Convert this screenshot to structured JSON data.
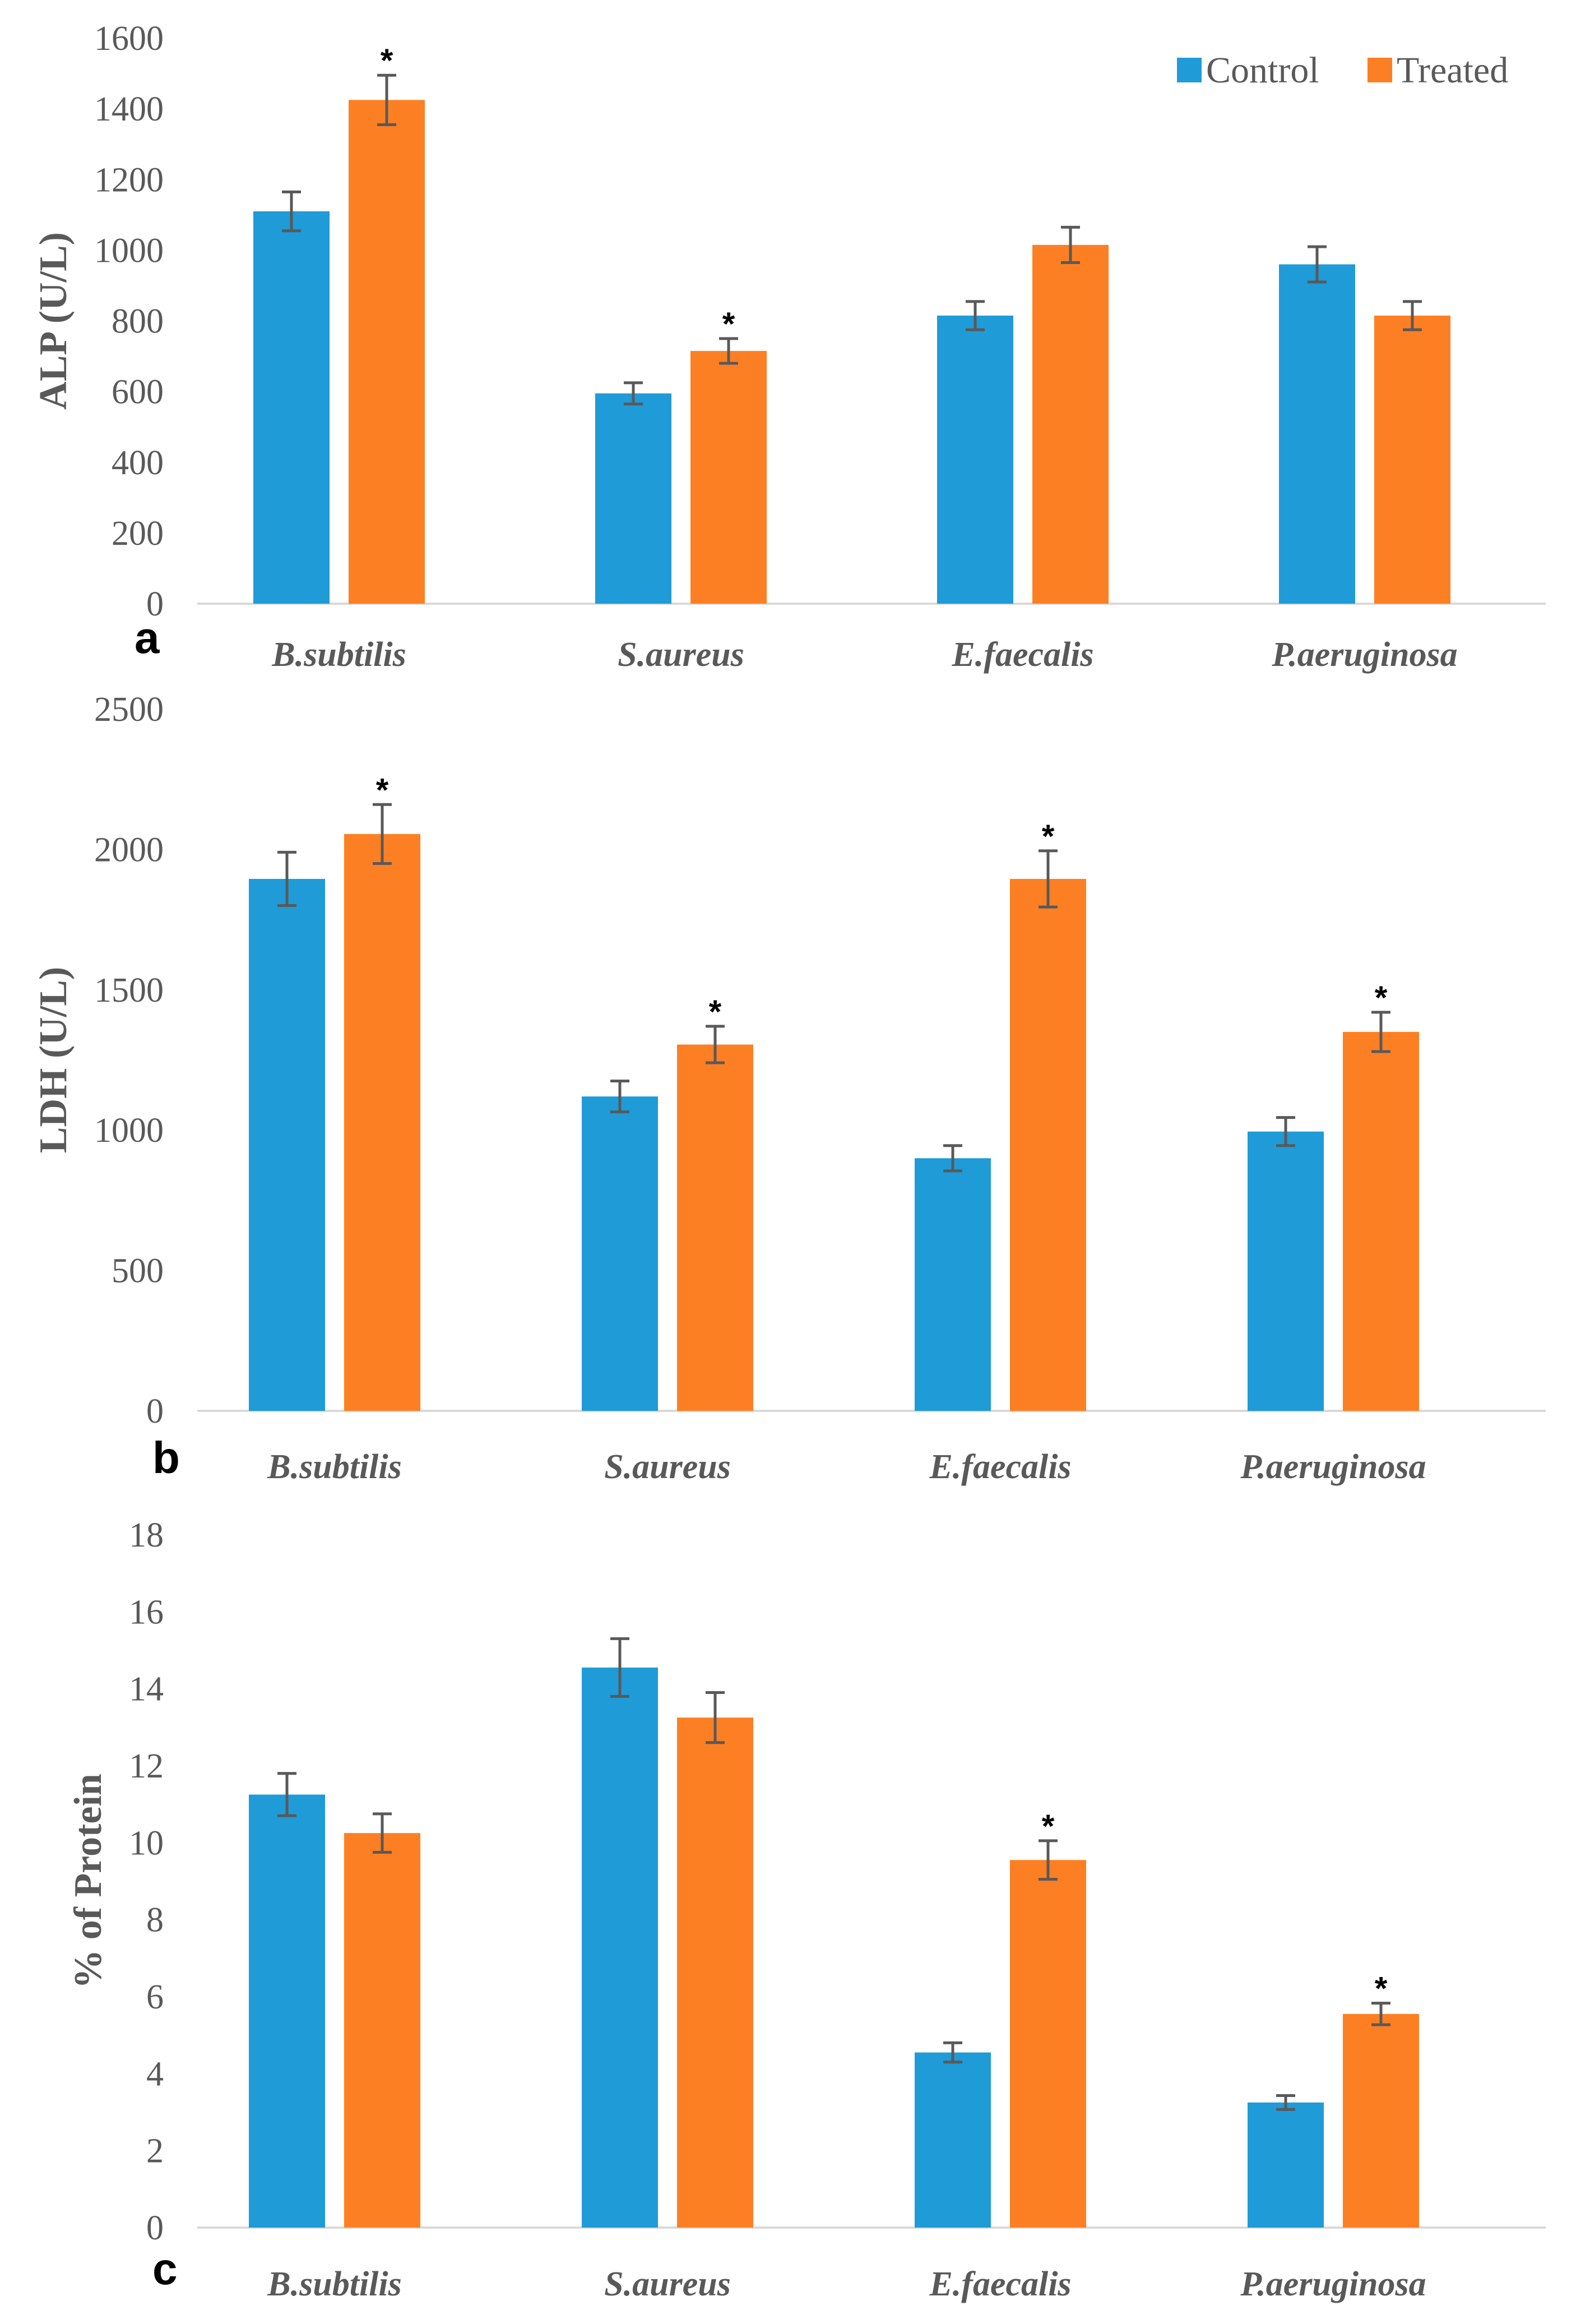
{
  "colors": {
    "control": "#1f9bd7",
    "treated": "#fd7f23",
    "axis": "#d9d9d9",
    "errbar": "#595959"
  },
  "legend": {
    "control_label": "Control",
    "treated_label": "Treated",
    "placement": "top-right"
  },
  "chart_data": [
    {
      "type": "bar",
      "panel_label": "a",
      "ylabel": "ALP (U/L)",
      "xlabel": "",
      "ylim": [
        0,
        1600
      ],
      "yticks": [
        0,
        200,
        400,
        600,
        800,
        1000,
        1200,
        1400,
        1600
      ],
      "categories": [
        "B.subtilis",
        "S.aureus",
        "E.faecalis",
        "P.aeruginosa"
      ],
      "series": [
        {
          "name": "Control",
          "values": [
            1110,
            595,
            815,
            960
          ],
          "errors": [
            55,
            30,
            40,
            50
          ],
          "significant": [
            "",
            "",
            "",
            ""
          ]
        },
        {
          "name": "Treated",
          "values": [
            1425,
            715,
            1015,
            815
          ],
          "errors": [
            70,
            35,
            50,
            40
          ],
          "significant": [
            "*",
            "*",
            "",
            ""
          ]
        }
      ],
      "grid": false,
      "legend": true
    },
    {
      "type": "bar",
      "panel_label": "b",
      "ylabel": "LDH (U/L)",
      "xlabel": "",
      "ylim": [
        0,
        2500
      ],
      "yticks": [
        0,
        500,
        1000,
        1500,
        2000,
        2500
      ],
      "categories": [
        "B.subtilis",
        "S.aureus",
        "E.faecalis",
        "P.aeruginosa"
      ],
      "series": [
        {
          "name": "Control",
          "values": [
            1895,
            1120,
            900,
            995
          ],
          "errors": [
            95,
            55,
            45,
            50
          ],
          "significant": [
            "",
            "",
            "",
            ""
          ]
        },
        {
          "name": "Treated",
          "values": [
            2055,
            1305,
            1895,
            1350
          ],
          "errors": [
            105,
            65,
            100,
            70
          ],
          "significant": [
            "*",
            "*",
            "*",
            "*"
          ]
        }
      ],
      "grid": false,
      "legend": false
    },
    {
      "type": "bar",
      "panel_label": "c",
      "ylabel": "% of Protein",
      "xlabel": "",
      "ylim": [
        0,
        18
      ],
      "yticks": [
        0,
        2,
        4,
        6,
        8,
        10,
        12,
        14,
        16,
        18
      ],
      "categories": [
        "B.subtilis",
        "S.aureus",
        "E.faecalis",
        "P.aeruginosa"
      ],
      "series": [
        {
          "name": "Control",
          "values": [
            11.25,
            14.55,
            4.55,
            3.25
          ],
          "errors": [
            0.55,
            0.75,
            0.25,
            0.18
          ],
          "significant": [
            "",
            "",
            "",
            ""
          ]
        },
        {
          "name": "Treated",
          "values": [
            10.25,
            13.25,
            9.55,
            5.55
          ],
          "errors": [
            0.5,
            0.65,
            0.5,
            0.28
          ],
          "significant": [
            "",
            "",
            "*",
            "*"
          ]
        }
      ],
      "grid": false,
      "legend": false
    }
  ]
}
